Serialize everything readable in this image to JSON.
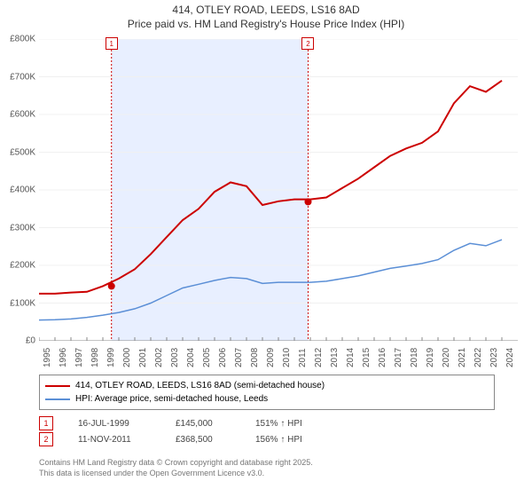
{
  "title_line1": "414, OTLEY ROAD, LEEDS, LS16 8AD",
  "title_line2": "Price paid vs. HM Land Registry's House Price Index (HPI)",
  "chart": {
    "type": "line",
    "background_color": "#ffffff",
    "grid_color": "#f0f0f0",
    "x_years": [
      1995,
      1996,
      1997,
      1998,
      1999,
      2000,
      2001,
      2002,
      2003,
      2004,
      2005,
      2006,
      2007,
      2008,
      2009,
      2010,
      2011,
      2012,
      2013,
      2014,
      2015,
      2016,
      2017,
      2018,
      2019,
      2020,
      2021,
      2022,
      2023,
      2024
    ],
    "ylim": [
      0,
      800
    ],
    "yticks": [
      0,
      100,
      200,
      300,
      400,
      500,
      600,
      700,
      800
    ],
    "ytick_labels": [
      "£0",
      "£100K",
      "£200K",
      "£300K",
      "£400K",
      "£500K",
      "£600K",
      "£700K",
      "£800K"
    ],
    "series": {
      "price_paid": {
        "label": "414, OTLEY ROAD, LEEDS, LS16 8AD (semi-detached house)",
        "color": "#cc0000",
        "line_width": 2,
        "values_k": [
          125,
          125,
          128,
          130,
          145,
          165,
          190,
          230,
          275,
          320,
          350,
          395,
          420,
          410,
          360,
          370,
          375,
          375,
          380,
          405,
          430,
          460,
          490,
          510,
          525,
          555,
          630,
          675,
          660,
          690
        ]
      },
      "hpi": {
        "label": "HPI: Average price, semi-detached house, Leeds",
        "color": "#5b8fd6",
        "line_width": 1.5,
        "values_k": [
          55,
          56,
          58,
          62,
          68,
          75,
          85,
          100,
          120,
          140,
          150,
          160,
          168,
          165,
          152,
          155,
          155,
          155,
          158,
          165,
          172,
          182,
          192,
          198,
          205,
          215,
          240,
          258,
          252,
          268
        ]
      }
    },
    "sale_markers": [
      {
        "n": "1",
        "year": 1999.54,
        "price_k": 145,
        "color": "#cc0000"
      },
      {
        "n": "2",
        "year": 2011.86,
        "price_k": 368.5,
        "color": "#cc0000"
      }
    ],
    "shade_band": {
      "from_year": 1999.54,
      "to_year": 2011.86,
      "color": "#e8efff"
    },
    "sale_line_color": "#cc0000"
  },
  "legend": {
    "border_color": "#888888"
  },
  "sales": [
    {
      "n": "1",
      "date": "16-JUL-1999",
      "price": "£145,000",
      "hpi": "151% ↑ HPI",
      "color": "#cc0000"
    },
    {
      "n": "2",
      "date": "11-NOV-2011",
      "price": "£368,500",
      "hpi": "156% ↑ HPI",
      "color": "#cc0000"
    }
  ],
  "footer_line1": "Contains HM Land Registry data © Crown copyright and database right 2025.",
  "footer_line2": "This data is licensed under the Open Government Licence v3.0."
}
